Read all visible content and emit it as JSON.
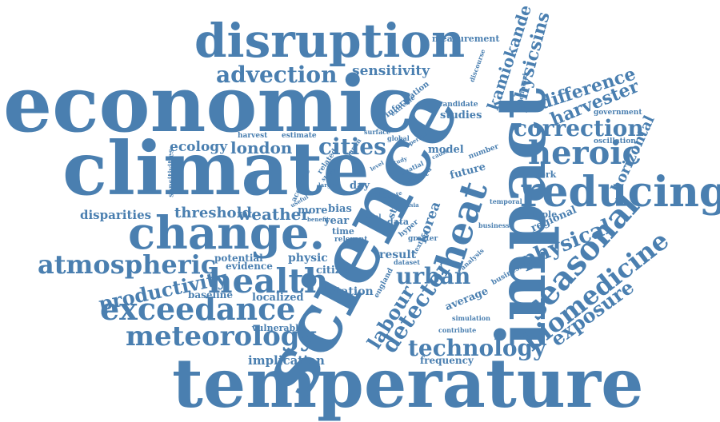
{
  "colors": {
    "word": "#4a7fb0",
    "background": "#ffffff"
  },
  "words": [
    "temperature",
    "economic",
    "climate",
    "science",
    "impact",
    "disruption",
    "change.",
    "reducing",
    "health",
    "exceedance",
    "heat",
    "atmospheric",
    "meteorology",
    "seasonal",
    "heroic",
    "correction",
    "biomedicine",
    "urban",
    "technology",
    "advection",
    "cities",
    "productivity",
    "detector",
    "physical",
    "labour",
    "exposure",
    "harvester",
    "difference",
    "physicsins",
    "kamiokande",
    "horizontal",
    "london",
    "weather",
    "threshold",
    "ecology",
    "sensitivity",
    "measurement",
    "disparities",
    "implication",
    "korea",
    "station",
    "result",
    "physic",
    "localized",
    "baseline",
    "evidence",
    "potential",
    "vulnerable",
    "citizen",
    "studies",
    "model",
    "future",
    "network",
    "regional",
    "example",
    "bias",
    "year",
    "more",
    "time",
    "day",
    "rice",
    "data",
    "average",
    "frequency",
    "harvest",
    "estimate",
    "oscillation",
    "government",
    "business",
    "businesses",
    "information",
    "candidate",
    "greater",
    "temporal",
    "number",
    "contribute",
    "simulation",
    "england",
    "relevant",
    "sensitivities",
    "accurate",
    "related",
    "str",
    "hyper",
    "effect",
    "surface",
    "global",
    "extreme",
    "likelihood",
    "discourse",
    "dataset",
    "analysis",
    "area",
    "spatial",
    "japan",
    "textrm",
    "local",
    "life",
    "asia",
    "benefit",
    "period",
    "study",
    "useful",
    "stage",
    "larger",
    "level",
    "cause"
  ]
}
